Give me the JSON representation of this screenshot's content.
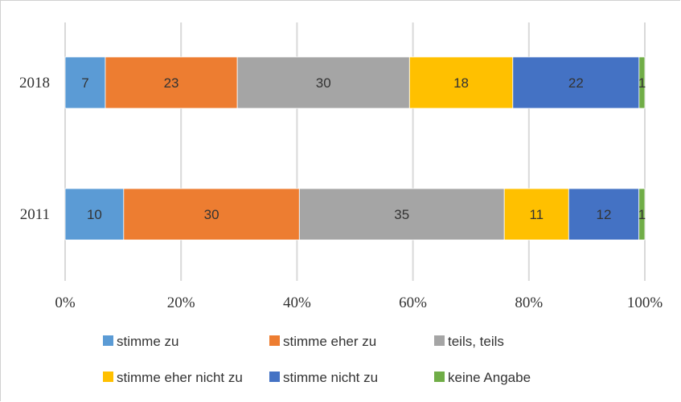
{
  "chart_data": {
    "type": "bar",
    "orientation": "horizontal",
    "stacked": "percent",
    "categories": [
      "2018",
      "2011"
    ],
    "series": [
      {
        "name": "stimme zu",
        "values": [
          7,
          10
        ],
        "color": "#5B9BD5"
      },
      {
        "name": "stimme eher zu",
        "values": [
          23,
          30
        ],
        "color": "#ED7D31"
      },
      {
        "name": "teils, teils",
        "values": [
          30,
          35
        ],
        "color": "#A5A5A5"
      },
      {
        "name": "stimme eher nicht zu",
        "values": [
          18,
          11
        ],
        "color": "#FFC000"
      },
      {
        "name": "stimme nicht zu",
        "values": [
          22,
          12
        ],
        "color": "#4472C4"
      },
      {
        "name": "keine Angabe",
        "values": [
          1,
          1
        ],
        "color": "#70AD47"
      }
    ],
    "xlim": [
      0,
      100
    ],
    "xticks": [
      "0%",
      "20%",
      "40%",
      "60%",
      "80%",
      "100%"
    ],
    "grid": true,
    "legend_position": "bottom",
    "title": "",
    "xlabel": "",
    "ylabel": ""
  }
}
